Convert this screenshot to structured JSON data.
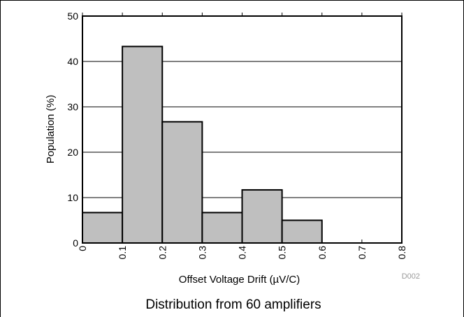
{
  "chart_data": {
    "type": "bar",
    "bins": [
      {
        "start": 0.0,
        "end": 0.1,
        "value": 6.7
      },
      {
        "start": 0.1,
        "end": 0.2,
        "value": 43.3
      },
      {
        "start": 0.2,
        "end": 0.3,
        "value": 26.7
      },
      {
        "start": 0.3,
        "end": 0.4,
        "value": 6.7
      },
      {
        "start": 0.4,
        "end": 0.5,
        "value": 11.7
      },
      {
        "start": 0.5,
        "end": 0.6,
        "value": 5.0
      }
    ],
    "x_ticks": [
      "0",
      "0.1",
      "0.2",
      "0.3",
      "0.4",
      "0.5",
      "0.6",
      "0.7",
      "0.8"
    ],
    "y_ticks": [
      "0",
      "10",
      "20",
      "30",
      "40",
      "50"
    ],
    "xlim": [
      0,
      0.8
    ],
    "ylim": [
      0,
      50
    ],
    "xlabel": "Offset Voltage Drift (µV/C)",
    "ylabel": "Population (%)",
    "figure_code": "D002",
    "caption": "Distribution from 60 amplifiers",
    "grid": "horizontal",
    "colors": {
      "bar_fill": "#bfbfbf",
      "bar_stroke": "#000000"
    }
  }
}
